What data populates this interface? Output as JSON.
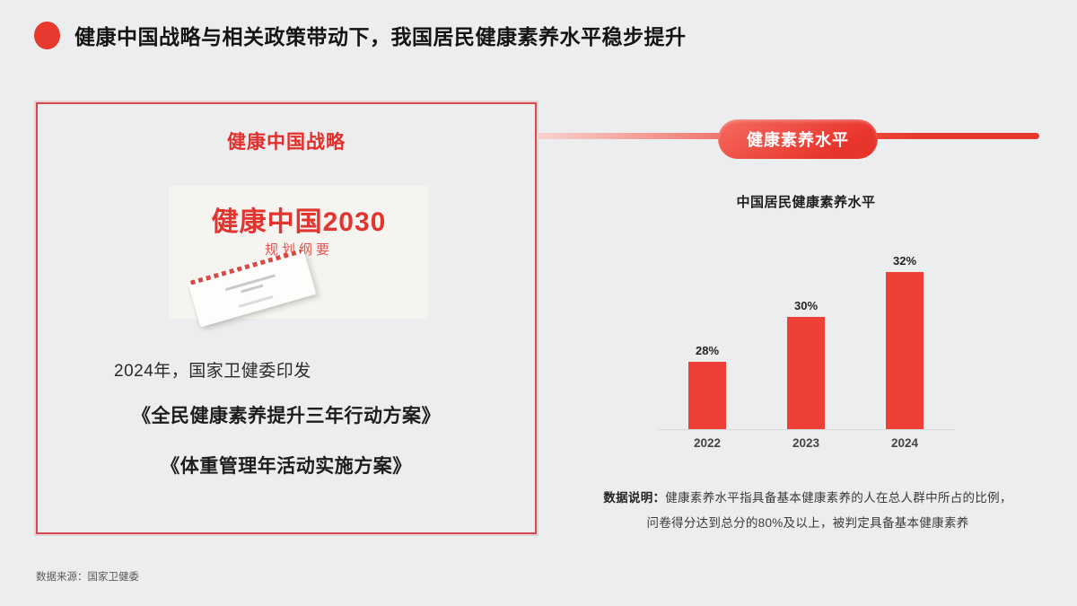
{
  "page": {
    "background": "#ecedef",
    "accent_red": "#e8392f",
    "bar_red": "#ee3f38",
    "border_red": "#d5494f"
  },
  "header": {
    "title": "健康中国战略与相关政策带动下，我国居民健康素养水平稳步提升"
  },
  "left_panel": {
    "title": "健康中国战略",
    "image": {
      "heading": "健康中国2030",
      "subheading": "规划纲要"
    },
    "intro": "2024年，国家卫健委印发",
    "document1": "《全民健康素养提升三年行动方案》",
    "document2": "《体重管理年活动实施方案》"
  },
  "right_panel": {
    "badge": "健康素养水平",
    "note_label": "数据说明：",
    "note_line1": "健康素养水平指具备基本健康素养的人在总人群中所占的比例，",
    "note_line2": "问卷得分达到总分的80%及以上，被判定具备基本健康素养"
  },
  "chart_data": {
    "type": "bar",
    "title": "中国居民健康素养水平",
    "categories": [
      "2022",
      "2023",
      "2024"
    ],
    "values": [
      28,
      30,
      32
    ],
    "value_labels": [
      "28%",
      "30%",
      "32%"
    ],
    "ylim": [
      25,
      33
    ],
    "bar_color": "#ee3f38",
    "grid": false,
    "legend": false
  },
  "footer": {
    "source": "数据来源：国家卫健委"
  }
}
